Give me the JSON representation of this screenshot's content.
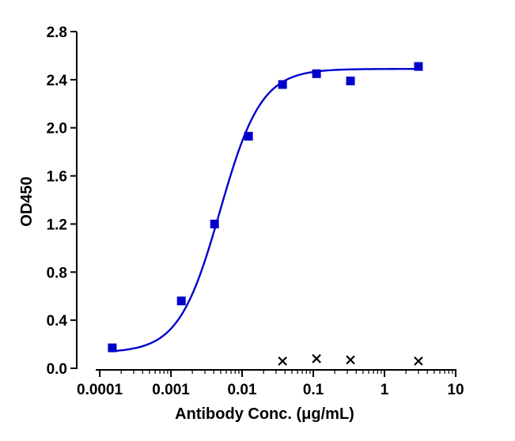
{
  "chart_data": {
    "type": "scatter",
    "xlabel": "Antibody Conc. (μg/mL)",
    "ylabel": "OD450",
    "x_scale": "log",
    "xlim": [
      5e-05,
      10
    ],
    "ylim": [
      0,
      2.8
    ],
    "x_ticks": [
      {
        "value": 0.0001,
        "label": "0.0001"
      },
      {
        "value": 0.001,
        "label": "0.001"
      },
      {
        "value": 0.01,
        "label": "0.01"
      },
      {
        "value": 0.1,
        "label": "0.1"
      },
      {
        "value": 1,
        "label": "1"
      },
      {
        "value": 10,
        "label": "10"
      }
    ],
    "y_ticks": [
      {
        "value": 0.0,
        "label": "0.0"
      },
      {
        "value": 0.4,
        "label": "0.4"
      },
      {
        "value": 0.8,
        "label": "0.8"
      },
      {
        "value": 1.2,
        "label": "1.2"
      },
      {
        "value": 1.6,
        "label": "1.6"
      },
      {
        "value": 2.0,
        "label": "2.0"
      },
      {
        "value": 2.4,
        "label": "2.4"
      },
      {
        "value": 2.8,
        "label": "2.8"
      }
    ],
    "grid": false,
    "series": [
      {
        "marker": "square",
        "color": "#0000cc",
        "points": [
          {
            "x": 0.00015,
            "y": 0.17
          },
          {
            "x": 0.0014,
            "y": 0.56
          },
          {
            "x": 0.0041,
            "y": 1.2
          },
          {
            "x": 0.0123,
            "y": 1.93
          },
          {
            "x": 0.037,
            "y": 2.36
          },
          {
            "x": 0.111,
            "y": 2.45
          },
          {
            "x": 0.333,
            "y": 2.39
          },
          {
            "x": 3.0,
            "y": 2.51
          }
        ],
        "fit": {
          "curve": "4PL",
          "bottom": 0.13,
          "top": 2.49,
          "ec50": 0.0049,
          "hill": 1.5,
          "x_range": [
            0.00015,
            3.0
          ]
        }
      },
      {
        "marker": "x",
        "color": "#000000",
        "points": [
          {
            "x": 0.037,
            "y": 0.06
          },
          {
            "x": 0.111,
            "y": 0.08
          },
          {
            "x": 0.333,
            "y": 0.07
          },
          {
            "x": 3.0,
            "y": 0.06
          }
        ]
      }
    ]
  }
}
